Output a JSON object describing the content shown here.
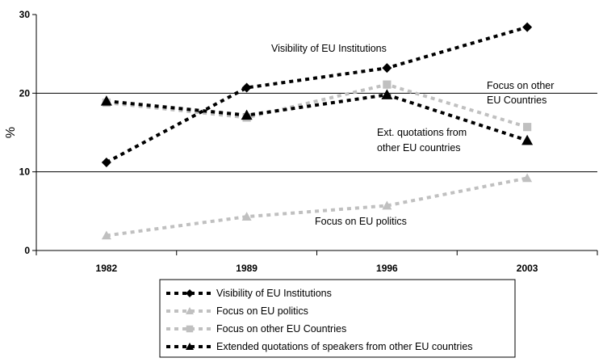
{
  "chart_data": {
    "type": "line",
    "x": [
      "1982",
      "1989",
      "1996",
      "2003"
    ],
    "ylabel": "%",
    "ylim": [
      0,
      30
    ],
    "yticks": [
      "0",
      "10",
      "20",
      "30"
    ],
    "grid": "horizontal at 10 and 20",
    "legend": "bottom",
    "series": [
      {
        "name": "Visibility of EU Institutions",
        "values": [
          11.2,
          20.7,
          23.2,
          28.4
        ],
        "color": "#000000",
        "marker": "diamond"
      },
      {
        "name": "Focus on EU politics",
        "values": [
          1.9,
          4.3,
          5.7,
          9.2
        ],
        "color": "#c0c0c0",
        "marker": "triangle"
      },
      {
        "name": "Focus on other EU Countries",
        "values": [
          18.8,
          16.9,
          21.1,
          15.7
        ],
        "color": "#c0c0c0",
        "marker": "square"
      },
      {
        "name": "Extended quotations of speakers from other EU countries",
        "values": [
          19.0,
          17.2,
          19.8,
          14.0
        ],
        "color": "#000000",
        "marker": "triangle"
      }
    ],
    "annotations": [
      {
        "id": "visibility",
        "lines": [
          "Visibility of EU Institutions"
        ]
      },
      {
        "id": "focus-other",
        "lines": [
          "Focus on other",
          "EU Countries"
        ]
      },
      {
        "id": "ext-quotes",
        "lines": [
          "Ext. quotations from",
          "other EU countries"
        ]
      },
      {
        "id": "focus-politics",
        "lines": [
          "Focus on EU politics"
        ]
      }
    ]
  }
}
